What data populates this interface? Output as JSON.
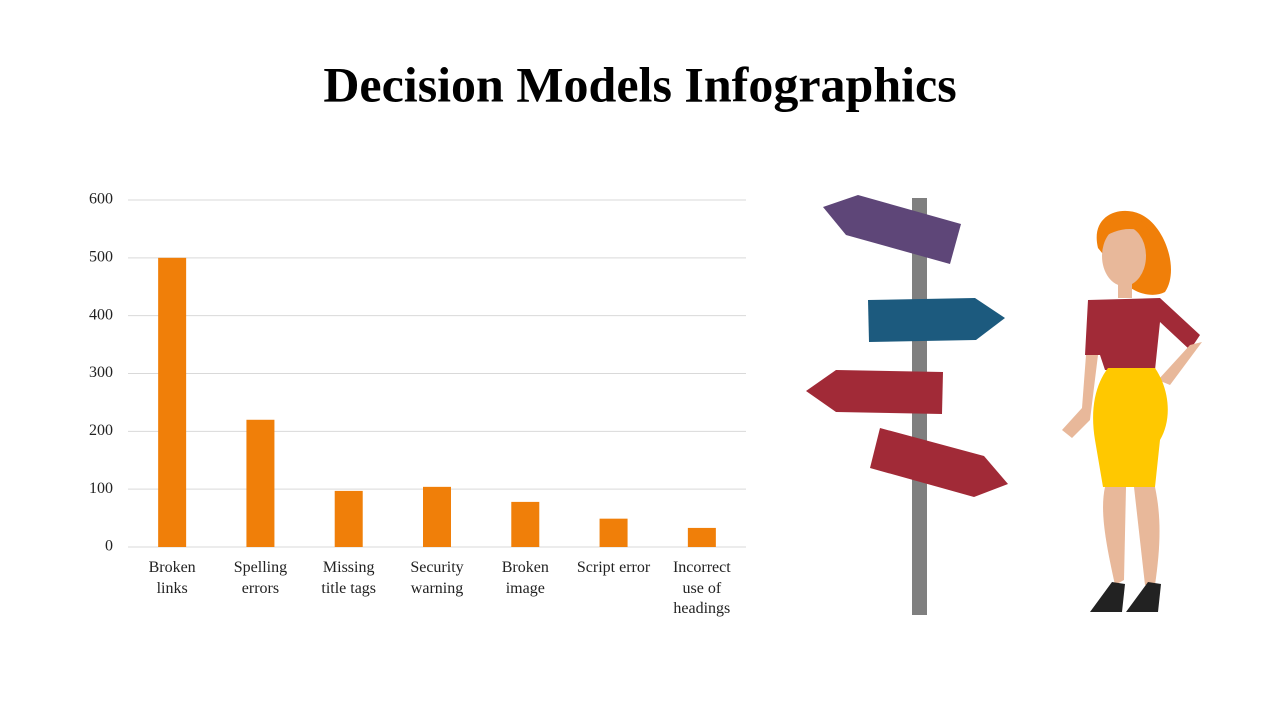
{
  "chart_data": {
    "type": "bar",
    "title": "Decision Models Infographics",
    "categories": [
      "Broken links",
      "Spelling errors",
      "Missing title tags",
      "Security warning",
      "Broken image",
      "Script error",
      "Incorrect use of headings"
    ],
    "values": [
      500,
      220,
      97,
      104,
      78,
      49,
      33
    ],
    "color": "#f07f09",
    "ylim": [
      0,
      600
    ],
    "yticks": [
      0,
      100,
      200,
      300,
      400,
      500,
      600
    ],
    "grid": true
  }
}
